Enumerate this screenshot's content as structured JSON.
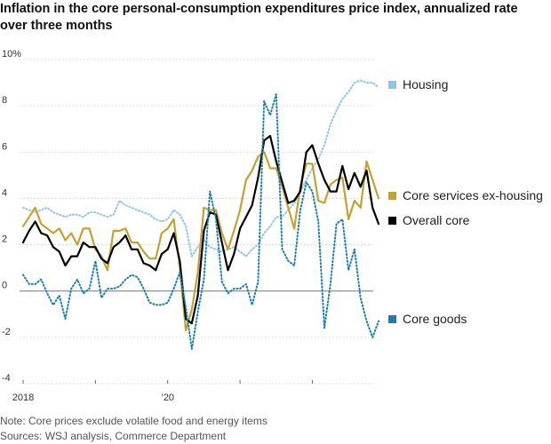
{
  "chart_data": {
    "type": "line",
    "title": "Inflation in the core personal-consumption expenditures price index, annualized rate over three months",
    "ylim": [
      -4,
      10
    ],
    "y_ticks": [
      {
        "value": 10,
        "label": "10%"
      },
      {
        "value": 8,
        "label": "8"
      },
      {
        "value": 6,
        "label": "6"
      },
      {
        "value": 4,
        "label": "4"
      },
      {
        "value": 2,
        "label": "2"
      },
      {
        "value": 0,
        "label": "0"
      },
      {
        "value": -2,
        "label": "-2"
      },
      {
        "value": -4,
        "label": "-4"
      }
    ],
    "x_range": [
      "2018-01",
      "2022-11"
    ],
    "x_ticks": [
      {
        "month": 0,
        "label": "2018"
      },
      {
        "month": 12,
        "label": ""
      },
      {
        "month": 24,
        "label": "’20"
      },
      {
        "month": 36,
        "label": ""
      },
      {
        "month": 48,
        "label": ""
      }
    ],
    "grid": "horizontal dotted",
    "legend": "right, beside line ends",
    "series": [
      {
        "name": "Housing",
        "color": "#8ec6e6",
        "style": "dotted",
        "start": "2018-01",
        "values": [
          3.6,
          3.5,
          3.4,
          3.5,
          3.6,
          3.4,
          3.3,
          3.2,
          3.3,
          3.3,
          3.2,
          3.4,
          3.4,
          3.3,
          3.2,
          3.3,
          3.9,
          3.7,
          3.6,
          3.5,
          3.4,
          3.3,
          3.1,
          3.0,
          3.1,
          3.5,
          3.3,
          2.8,
          1.5,
          1.9,
          2.2,
          1.9,
          1.8,
          1.7,
          1.8,
          1.9,
          1.7,
          1.5,
          1.8,
          2.0,
          2.5,
          2.8,
          3.2,
          3.2,
          3.5,
          3.8,
          4.3,
          4.8,
          5.3,
          5.7,
          6.3,
          7.2,
          7.8,
          8.3,
          8.6,
          9.0,
          9.1,
          9.0,
          9.0,
          8.8
        ]
      },
      {
        "name": "Core services ex-housing",
        "color": "#c4a232",
        "style": "solid",
        "start": "2018-01",
        "values": [
          2.8,
          3.2,
          3.6,
          2.9,
          2.7,
          2.5,
          2.7,
          2.2,
          2.5,
          2.0,
          2.7,
          2.7,
          1.8,
          1.5,
          0.9,
          2.6,
          2.6,
          2.7,
          2.1,
          2.1,
          1.7,
          1.4,
          1.4,
          2.5,
          2.7,
          3.1,
          1.0,
          -1.7,
          -0.8,
          0.8,
          3.6,
          3.5,
          3.5,
          2.5,
          1.8,
          2.6,
          3.5,
          4.8,
          5.2,
          5.8,
          6.0,
          5.3,
          5.3,
          4.5,
          3.6,
          2.7,
          4.5,
          5.5,
          5.5,
          3.9,
          3.8,
          4.6,
          4.8,
          4.9,
          3.1,
          3.9,
          3.6,
          5.6,
          4.8,
          4.0
        ]
      },
      {
        "name": "Overall core",
        "color": "#000000",
        "style": "solid",
        "start": "2018-01",
        "values": [
          2.1,
          2.6,
          3.0,
          2.5,
          2.4,
          1.9,
          1.7,
          1.1,
          1.5,
          1.5,
          2.1,
          1.9,
          1.9,
          1.4,
          1.2,
          1.9,
          2.1,
          2.4,
          1.8,
          1.8,
          1.2,
          1.1,
          0.9,
          1.6,
          1.8,
          2.5,
          1.3,
          -1.2,
          -1.4,
          -0.2,
          2.6,
          3.4,
          3.3,
          2.1,
          0.9,
          1.6,
          2.7,
          3.2,
          3.7,
          4.9,
          6.5,
          6.7,
          5.6,
          4.7,
          3.8,
          3.9,
          4.3,
          6.0,
          6.3,
          5.5,
          4.8,
          4.3,
          4.3,
          5.4,
          4.4,
          5.1,
          4.5,
          5.2,
          3.6,
          2.9
        ]
      },
      {
        "name": "Core goods",
        "color": "#1a7fad",
        "style": "dotted",
        "start": "2018-01",
        "values": [
          0.7,
          0.3,
          0.3,
          0.5,
          -0.1,
          -0.6,
          -0.2,
          -1.2,
          0.1,
          0.5,
          -0.1,
          0.1,
          1.3,
          -0.3,
          0.1,
          0.1,
          0.2,
          0.5,
          0.7,
          0.6,
          0.1,
          -0.5,
          -0.6,
          -0.6,
          -0.5,
          0.1,
          0.8,
          -0.7,
          -2.5,
          -0.9,
          0.5,
          4.3,
          3.1,
          0.4,
          -0.1,
          0.1,
          0.1,
          0.3,
          -0.6,
          0.4,
          8.2,
          7.6,
          8.5,
          1.8,
          1.3,
          1.1,
          3.5,
          4.7,
          4.3,
          3.0,
          -1.6,
          0.3,
          2.9,
          3.1,
          0.9,
          1.8,
          -0.3,
          -1.3,
          -2.0,
          -1.3
        ]
      }
    ]
  },
  "legend": {
    "housing": "Housing",
    "services": "Core services ex-housing",
    "overall": "Overall core",
    "goods": "Core goods"
  },
  "note": "Note: Core prices exclude volatile food and energy items",
  "sources": "Sources: WSJ analysis, Commerce Department"
}
